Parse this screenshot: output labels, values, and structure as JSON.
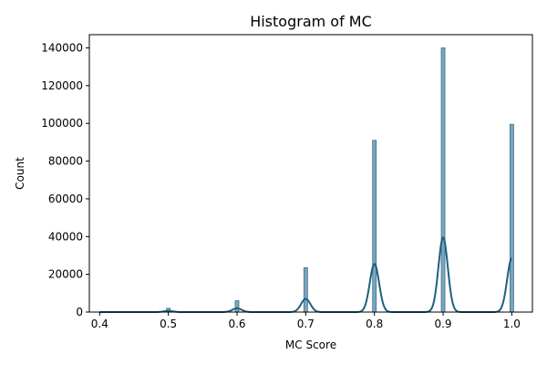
{
  "chart_data": {
    "type": "bar",
    "title": "Histogram of MC",
    "xlabel": "MC Score",
    "ylabel": "Count",
    "xlim": [
      0.385,
      1.03
    ],
    "ylim": [
      0,
      147000
    ],
    "xticks": [
      0.4,
      0.5,
      0.6,
      0.7,
      0.8,
      0.9,
      1.0
    ],
    "xtick_labels": [
      "0.4",
      "0.5",
      "0.6",
      "0.7",
      "0.8",
      "0.9",
      "1.0"
    ],
    "yticks": [
      0,
      20000,
      40000,
      60000,
      80000,
      100000,
      120000,
      140000
    ],
    "ytick_labels": [
      "0",
      "20000",
      "40000",
      "60000",
      "80000",
      "100000",
      "120000",
      "140000"
    ],
    "grid": false,
    "bars": [
      {
        "x": 0.5,
        "value": 2000
      },
      {
        "x": 0.6,
        "value": 6000
      },
      {
        "x": 0.7,
        "value": 23500
      },
      {
        "x": 0.8,
        "value": 91000
      },
      {
        "x": 0.9,
        "value": 140000
      },
      {
        "x": 1.0,
        "value": 99500
      }
    ],
    "kde": {
      "x": [
        0.4,
        0.5,
        0.6,
        0.7,
        0.8,
        0.9,
        1.0
      ],
      "peaks": [
        0,
        600,
        2000,
        7000,
        25500,
        39500,
        28500
      ]
    },
    "bar_color": "#7aa6bd",
    "bar_edge_color": "#3f6f88",
    "kde_color": "#1f5f7f"
  }
}
